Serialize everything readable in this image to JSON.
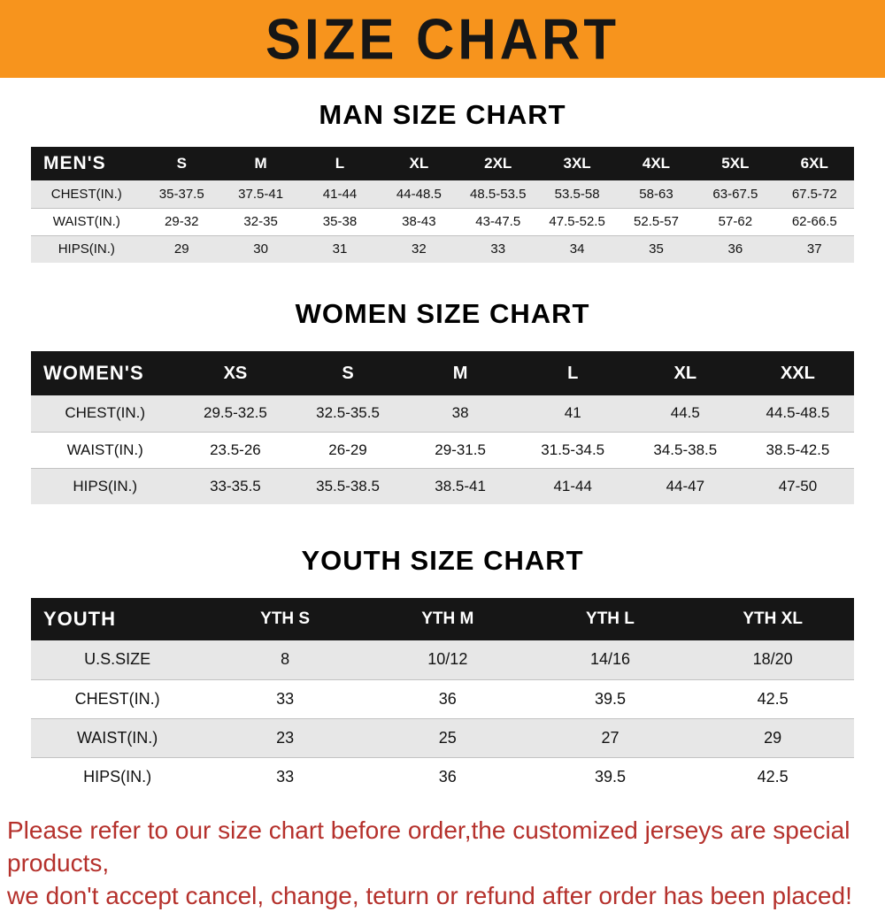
{
  "banner": {
    "title": "SIZE CHART",
    "bg_color": "#F7941D",
    "text_color": "#161616"
  },
  "men": {
    "heading": "MAN SIZE CHART",
    "table": {
      "header": [
        "MEN'S",
        "S",
        "M",
        "L",
        "XL",
        "2XL",
        "3XL",
        "4XL",
        "5XL",
        "6XL"
      ],
      "rows": [
        [
          "CHEST(IN.)",
          "35-37.5",
          "37.5-41",
          "41-44",
          "44-48.5",
          "48.5-53.5",
          "53.5-58",
          "58-63",
          "63-67.5",
          "67.5-72"
        ],
        [
          "WAIST(IN.)",
          "29-32",
          "32-35",
          "35-38",
          "38-43",
          "43-47.5",
          "47.5-52.5",
          "52.5-57",
          "57-62",
          "62-66.5"
        ],
        [
          "HIPS(IN.)",
          "29",
          "30",
          "31",
          "32",
          "33",
          "34",
          "35",
          "36",
          "37"
        ]
      ]
    }
  },
  "women": {
    "heading": "WOMEN SIZE CHART",
    "table": {
      "header": [
        "WOMEN'S",
        "XS",
        "S",
        "M",
        "L",
        "XL",
        "XXL"
      ],
      "rows": [
        [
          "CHEST(IN.)",
          "29.5-32.5",
          "32.5-35.5",
          "38",
          "41",
          "44.5",
          "44.5-48.5"
        ],
        [
          "WAIST(IN.)",
          "23.5-26",
          "26-29",
          "29-31.5",
          "31.5-34.5",
          "34.5-38.5",
          "38.5-42.5"
        ],
        [
          "HIPS(IN.)",
          "33-35.5",
          "35.5-38.5",
          "38.5-41",
          "41-44",
          "44-47",
          "47-50"
        ]
      ]
    }
  },
  "youth": {
    "heading": "YOUTH SIZE CHART",
    "table": {
      "header": [
        "YOUTH",
        "YTH S",
        "YTH M",
        "YTH L",
        "YTH XL"
      ],
      "rows": [
        [
          "U.S.SIZE",
          "8",
          "10/12",
          "14/16",
          "18/20"
        ],
        [
          "CHEST(IN.)",
          "33",
          "36",
          "39.5",
          "42.5"
        ],
        [
          "WAIST(IN.)",
          "23",
          "25",
          "27",
          "29"
        ],
        [
          "HIPS(IN.)",
          "33",
          "36",
          "39.5",
          "42.5"
        ]
      ]
    }
  },
  "footer": {
    "line1": "Please refer to our size chart before order,the customized jerseys are special products,",
    "line2": "we don't accept cancel, change, teturn or refund after order has been placed!",
    "text_color": "#B5312C"
  }
}
